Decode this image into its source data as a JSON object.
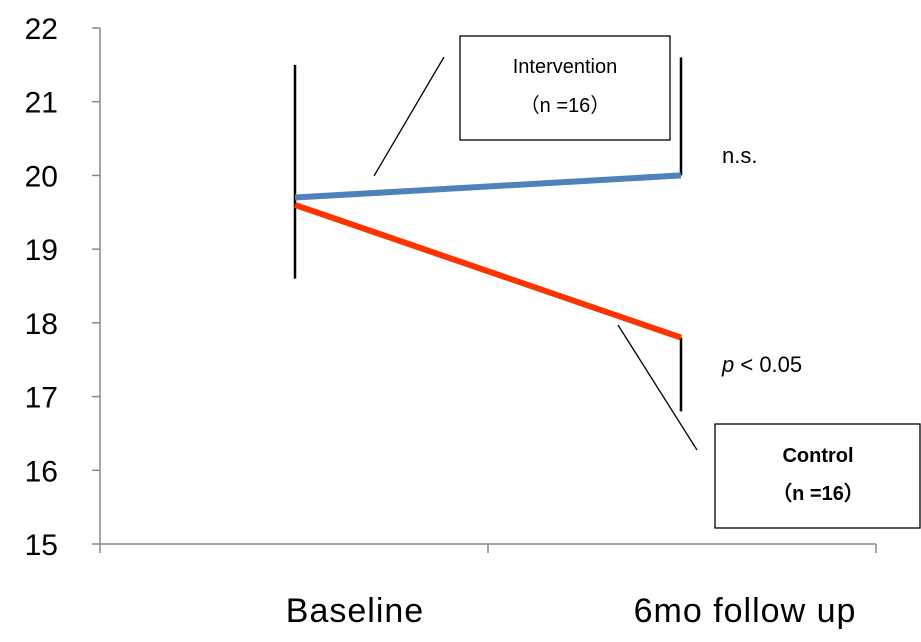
{
  "chart_data": {
    "type": "line",
    "categories": [
      "Baseline",
      "6mo follow up"
    ],
    "ylim": [
      15,
      22
    ],
    "y_ticks": [
      15,
      16,
      17,
      18,
      19,
      20,
      21,
      22
    ],
    "grid": false,
    "series": [
      {
        "name": "Intervention",
        "sample_size": "（n =16）",
        "values": [
          19.7,
          20.0
        ],
        "color": "#4f81bd",
        "error_bars": [
          {
            "category": "Baseline",
            "low": 18.6,
            "high": 21.5
          }
        ],
        "half_error_bars": [
          {
            "category": "6mo follow up",
            "direction": "up",
            "end": 21.6
          }
        ],
        "significance": "n.s."
      },
      {
        "name": "Control",
        "sample_size": "（n =16）",
        "values": [
          19.6,
          17.8
        ],
        "color": "#ff3300",
        "half_error_bars": [
          {
            "category": "6mo follow up",
            "direction": "down",
            "end": 16.8
          }
        ],
        "significance_p": "p",
        "significance_rest": " < 0.05"
      }
    ]
  }
}
